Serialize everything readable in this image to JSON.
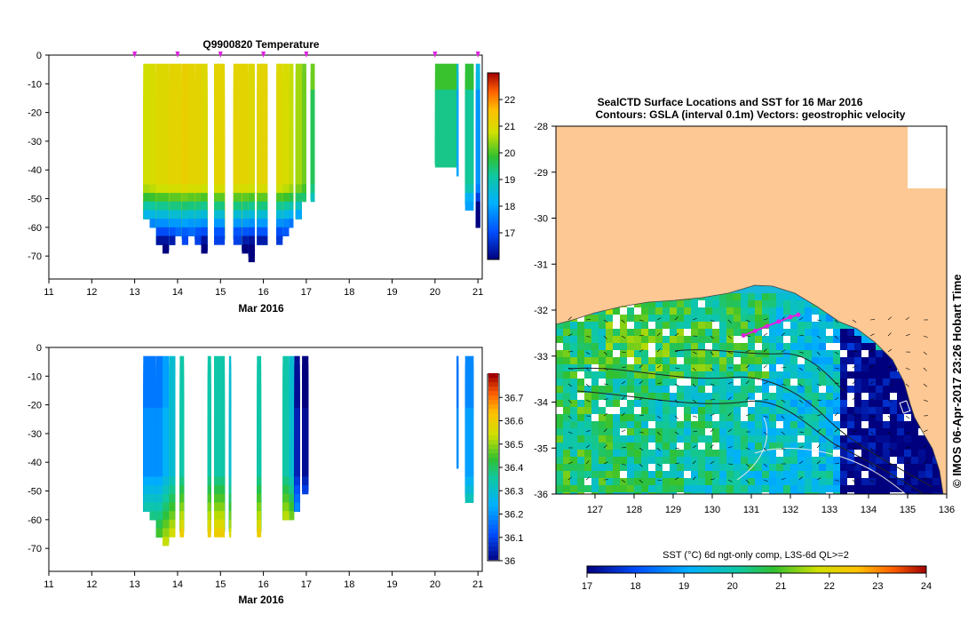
{
  "chart_data": [
    {
      "type": "heatmap",
      "title": "Q9900820  Temperature",
      "xlabel": "Mar 2016",
      "xlim": [
        11,
        21.1
      ],
      "ylim": [
        -78,
        0
      ],
      "x_ticks": [
        "11",
        "12",
        "13",
        "14",
        "15",
        "16",
        "17",
        "18",
        "19",
        "20",
        "21"
      ],
      "y_ticks": [
        "0",
        "-10",
        "-20",
        "-30",
        "-40",
        "-50",
        "-60",
        "-70"
      ],
      "colorbar_range": [
        16,
        23
      ],
      "colorbar_ticks": [
        "22",
        "21",
        "20",
        "19",
        "18",
        "17"
      ],
      "surface_markers_x": [
        13.0,
        14.0,
        15.0,
        16.0,
        17.0,
        20.0,
        21.0
      ],
      "profiles": [
        {
          "x0": 13.2,
          "x1": 13.35,
          "bottom": -57,
          "value": 20.8
        },
        {
          "x0": 13.35,
          "x1": 13.5,
          "bottom": -60,
          "value": 20.9
        },
        {
          "x0": 13.5,
          "x1": 13.65,
          "bottom": -66,
          "value": 21.0
        },
        {
          "x0": 13.65,
          "x1": 13.8,
          "bottom": -68,
          "value": 21.0
        },
        {
          "x0": 13.8,
          "x1": 13.95,
          "bottom": -66,
          "value": 21.1
        },
        {
          "x0": 13.95,
          "x1": 14.1,
          "bottom": -62,
          "value": 21.1
        },
        {
          "x0": 14.1,
          "x1": 14.25,
          "bottom": -64,
          "value": 21.2
        },
        {
          "x0": 14.25,
          "x1": 14.4,
          "bottom": -62,
          "value": 21.1
        },
        {
          "x0": 14.4,
          "x1": 14.55,
          "bottom": -64,
          "value": 21.1
        },
        {
          "x0": 14.55,
          "x1": 14.7,
          "bottom": -68,
          "value": 21.0
        },
        {
          "x0": 14.85,
          "x1": 15.1,
          "bottom": -64,
          "value": 21.1
        },
        {
          "x0": 15.3,
          "x1": 15.5,
          "bottom": -64,
          "value": 21.1
        },
        {
          "x0": 15.5,
          "x1": 15.65,
          "bottom": -68,
          "value": 21.1
        },
        {
          "x0": 15.65,
          "x1": 15.8,
          "bottom": -70,
          "value": 21.0
        },
        {
          "x0": 15.85,
          "x1": 16.1,
          "bottom": -66,
          "value": 21.1
        },
        {
          "x0": 16.3,
          "x1": 16.45,
          "bottom": -64,
          "value": 21.0
        },
        {
          "x0": 16.45,
          "x1": 16.6,
          "bottom": -62,
          "value": 20.9
        },
        {
          "x0": 16.6,
          "x1": 16.7,
          "bottom": -60,
          "value": 20.7
        },
        {
          "x0": 16.75,
          "x1": 16.9,
          "bottom": -57,
          "value": 20.5
        },
        {
          "x0": 16.9,
          "x1": 17.0,
          "bottom": -50,
          "value": 20.2
        },
        {
          "x0": 17.1,
          "x1": 17.2,
          "bottom": -50,
          "value": 19.6
        },
        {
          "x0": 20.0,
          "x1": 20.5,
          "bottom": -38,
          "value": 19.3
        },
        {
          "x0": 20.5,
          "x1": 20.55,
          "bottom": -42,
          "value": 18.0
        },
        {
          "x0": 20.7,
          "x1": 20.9,
          "bottom": -52,
          "value": 19.2
        },
        {
          "x0": 20.95,
          "x1": 21.05,
          "bottom": -60,
          "value": 17.8
        }
      ]
    },
    {
      "type": "heatmap",
      "xlabel": "Mar 2016",
      "xlim": [
        11,
        21.1
      ],
      "ylim": [
        -78,
        0
      ],
      "x_ticks": [
        "11",
        "12",
        "13",
        "14",
        "15",
        "16",
        "17",
        "18",
        "19",
        "20",
        "21"
      ],
      "y_ticks": [
        "0",
        "-10",
        "-20",
        "-30",
        "-40",
        "-50",
        "-60",
        "-70"
      ],
      "colorbar_range": [
        36.0,
        36.8
      ],
      "colorbar_ticks": [
        "36.7",
        "36.6",
        "36.5",
        "36.4",
        "36.3",
        "36.2",
        "36.1",
        "36"
      ],
      "profiles": [
        {
          "x0": 13.2,
          "x1": 13.35,
          "bottom": -57,
          "value": 36.2
        },
        {
          "x0": 13.35,
          "x1": 13.5,
          "bottom": -60,
          "value": 36.2
        },
        {
          "x0": 13.5,
          "x1": 13.65,
          "bottom": -66,
          "value": 36.2
        },
        {
          "x0": 13.65,
          "x1": 13.8,
          "bottom": -68,
          "value": 36.25
        },
        {
          "x0": 13.8,
          "x1": 13.95,
          "bottom": -64,
          "value": 36.3
        },
        {
          "x0": 14.05,
          "x1": 14.15,
          "bottom": -64,
          "value": 36.35
        },
        {
          "x0": 14.7,
          "x1": 14.78,
          "bottom": -64,
          "value": 36.35
        },
        {
          "x0": 14.85,
          "x1": 15.1,
          "bottom": -64,
          "value": 36.35
        },
        {
          "x0": 15.2,
          "x1": 15.25,
          "bottom": -64,
          "value": 36.3
        },
        {
          "x0": 15.85,
          "x1": 15.95,
          "bottom": -64,
          "value": 36.35
        },
        {
          "x0": 16.45,
          "x1": 16.6,
          "bottom": -60,
          "value": 36.35
        },
        {
          "x0": 16.6,
          "x1": 16.72,
          "bottom": -58,
          "value": 36.3
        },
        {
          "x0": 16.72,
          "x1": 16.85,
          "bottom": -57,
          "value": 36.05
        },
        {
          "x0": 16.9,
          "x1": 17.05,
          "bottom": -50,
          "value": 36.02
        },
        {
          "x0": 20.5,
          "x1": 20.55,
          "bottom": -42,
          "value": 36.2
        },
        {
          "x0": 20.7,
          "x1": 20.9,
          "bottom": -52,
          "value": 36.22
        }
      ]
    },
    {
      "type": "heatmap",
      "title": "SealCTD Surface Locations and SST for 16 Mar 2016",
      "subtitle": "Contours: GSLA (interval 0.1m) Vectors: geostrophic velocity",
      "x_ticks": [
        "127",
        "128",
        "129",
        "130",
        "131",
        "132",
        "133",
        "134",
        "135",
        "136"
      ],
      "y_ticks": [
        "-28",
        "-29",
        "-30",
        "-31",
        "-32",
        "-33",
        "-34",
        "-35",
        "-36"
      ],
      "xlim": [
        126,
        136
      ],
      "ylim": [
        -36,
        -28
      ],
      "colorbar_label": "SST (°C) 6d ngt-only comp, L3S-6d QL>=2",
      "colorbar_ticks": [
        "17",
        "18",
        "19",
        "20",
        "21",
        "22",
        "23",
        "24"
      ],
      "colorbar_range": [
        17,
        24
      ],
      "side_label": "© IMOS 06-Apr-2017 23:26 Hobart Time",
      "seal_track": [
        [
          130.8,
          -32.55
        ],
        [
          131.1,
          -32.45
        ],
        [
          131.4,
          -32.35
        ],
        [
          131.7,
          -32.25
        ],
        [
          132.0,
          -32.15
        ],
        [
          132.2,
          -32.1
        ]
      ]
    }
  ]
}
